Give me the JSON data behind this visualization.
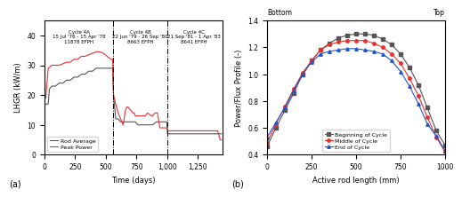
{
  "panel_a": {
    "title_cycle4a": "Cycle 4A\n15 Jul '76 - 15 Apr '78\n11878 EFPH",
    "title_cycle4b": "Cycle 4B\n22 Jun '79 - 26 Sep '80\n8663 EFPH",
    "title_cycle4c": "Cycle 4C\n21 Sep '81 - 1 Apr '83\n8641 EFPH",
    "vline1": 560,
    "vline2": 1000,
    "xlabel": "Time (days)",
    "ylabel": "LHGR (kW/m)",
    "xlim": [
      0,
      1450
    ],
    "ylim": [
      0,
      45
    ],
    "yticks": [
      0,
      10,
      20,
      30,
      40
    ],
    "xticks": [
      0,
      250,
      500,
      750,
      1000,
      1250
    ],
    "rod_average_color": "#555555",
    "peak_power_color": "#e83030",
    "rod_average_x": [
      0,
      10,
      30,
      40,
      60,
      80,
      90,
      120,
      150,
      180,
      210,
      240,
      270,
      300,
      330,
      360,
      390,
      420,
      450,
      480,
      510,
      540,
      555,
      562,
      580,
      600,
      620,
      640,
      660,
      680,
      700,
      720,
      740,
      760,
      790,
      820,
      850,
      880,
      910,
      940,
      970,
      995,
      1002,
      1020,
      1050,
      1080,
      1110,
      1140,
      1170,
      1200,
      1230,
      1260,
      1290,
      1320,
      1350,
      1380,
      1410,
      1440
    ],
    "rod_average_y": [
      17,
      17,
      17,
      22,
      23,
      23,
      23,
      24,
      24,
      25,
      25,
      26,
      26,
      27,
      27,
      28,
      28,
      29,
      29,
      29,
      29,
      29,
      29,
      20,
      12,
      12,
      11,
      11,
      11,
      11,
      11,
      11,
      11,
      10,
      10,
      10,
      10,
      10,
      11,
      11,
      11,
      11,
      7,
      7,
      7,
      7,
      7,
      7,
      7,
      7,
      7,
      7,
      7,
      7,
      7,
      7,
      7,
      7
    ],
    "peak_power_x": [
      0,
      5,
      10,
      30,
      60,
      90,
      120,
      150,
      180,
      210,
      240,
      270,
      300,
      330,
      360,
      390,
      420,
      450,
      480,
      510,
      540,
      555,
      562,
      580,
      600,
      620,
      640,
      660,
      670,
      680,
      700,
      720,
      730,
      740,
      760,
      780,
      800,
      820,
      840,
      870,
      880,
      900,
      920,
      940,
      960,
      970,
      995,
      1002,
      1020,
      1050,
      1080,
      1110,
      1140,
      1170,
      1200,
      1230,
      1260,
      1290,
      1320,
      1350,
      1380,
      1410,
      1430,
      1440
    ],
    "peak_power_y": [
      19,
      19,
      19,
      29,
      30,
      30,
      30,
      30.5,
      31,
      31,
      32,
      32,
      33,
      33,
      33.5,
      34,
      34.5,
      34.5,
      34,
      33,
      32,
      32,
      20,
      17,
      14,
      12,
      10,
      15,
      16,
      16,
      15,
      14,
      14,
      13,
      13,
      13,
      13,
      13,
      14,
      13,
      13,
      14,
      14,
      9,
      9,
      9,
      9,
      8,
      8,
      8,
      8,
      8,
      8,
      8,
      8,
      8,
      8,
      8,
      8,
      8,
      8,
      8,
      5,
      5
    ]
  },
  "panel_b": {
    "xlabel": "Active rod length (mm)",
    "ylabel": "Power/Flux Profile (-)",
    "xlim": [
      0,
      1000
    ],
    "ylim": [
      0.4,
      1.4
    ],
    "yticks": [
      0.4,
      0.6,
      0.8,
      1.0,
      1.2,
      1.4
    ],
    "xticks": [
      0,
      250,
      500,
      750,
      1000
    ],
    "top_label": "Top",
    "bottom_label": "Bottom",
    "boc_color": "#555555",
    "moc_color": "#e83030",
    "eoc_color": "#2255cc",
    "x_values": [
      0,
      50,
      100,
      150,
      200,
      250,
      300,
      350,
      400,
      450,
      500,
      550,
      600,
      650,
      700,
      750,
      800,
      850,
      900,
      950,
      1000
    ],
    "boc_y": [
      0.46,
      0.6,
      0.73,
      0.86,
      1.0,
      1.1,
      1.18,
      1.23,
      1.27,
      1.29,
      1.3,
      1.3,
      1.29,
      1.26,
      1.22,
      1.15,
      1.05,
      0.92,
      0.75,
      0.58,
      0.47
    ],
    "moc_y": [
      0.49,
      0.63,
      0.76,
      0.89,
      1.01,
      1.1,
      1.18,
      1.22,
      1.24,
      1.25,
      1.25,
      1.25,
      1.23,
      1.2,
      1.15,
      1.08,
      0.97,
      0.84,
      0.68,
      0.53,
      0.42
    ],
    "eoc_y": [
      0.53,
      0.64,
      0.75,
      0.88,
      1.0,
      1.09,
      1.15,
      1.17,
      1.18,
      1.19,
      1.19,
      1.18,
      1.17,
      1.15,
      1.1,
      1.02,
      0.91,
      0.78,
      0.63,
      0.54,
      0.43
    ],
    "legend_labels": [
      "Beginning of Cycle",
      "Middle of Cycle",
      "End of Cycle"
    ]
  }
}
